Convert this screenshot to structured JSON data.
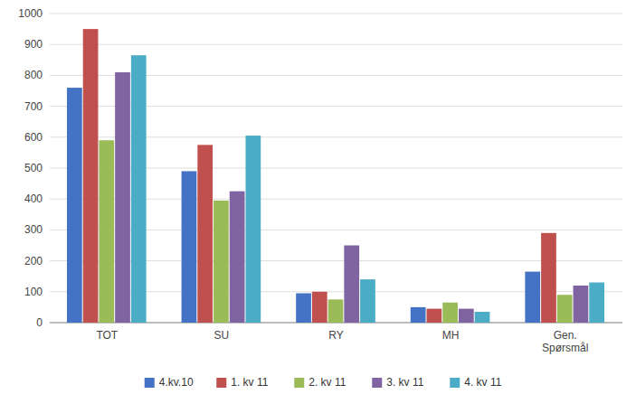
{
  "chart_data": {
    "type": "bar",
    "categories": [
      "TOT",
      "SU",
      "RY",
      "MH",
      "Gen.\nSpørsmål"
    ],
    "series": [
      {
        "name": "4.kv.10",
        "color": "#4472C4",
        "values": [
          760,
          490,
          95,
          50,
          165
        ]
      },
      {
        "name": "1. kv 11",
        "color": "#C0504D",
        "values": [
          950,
          575,
          100,
          45,
          290
        ]
      },
      {
        "name": "2. kv 11",
        "color": "#9BBB59",
        "values": [
          590,
          395,
          75,
          65,
          90
        ]
      },
      {
        "name": "3. kv 11",
        "color": "#8064A2",
        "values": [
          810,
          425,
          250,
          45,
          120
        ]
      },
      {
        "name": "4. kv 11",
        "color": "#4BACC6",
        "values": [
          865,
          605,
          140,
          35,
          130
        ]
      }
    ],
    "ylim": [
      0,
      1000
    ],
    "yticks": [
      0,
      100,
      200,
      300,
      400,
      500,
      600,
      700,
      800,
      900,
      1000
    ],
    "grid": true,
    "legend": "bottom"
  }
}
